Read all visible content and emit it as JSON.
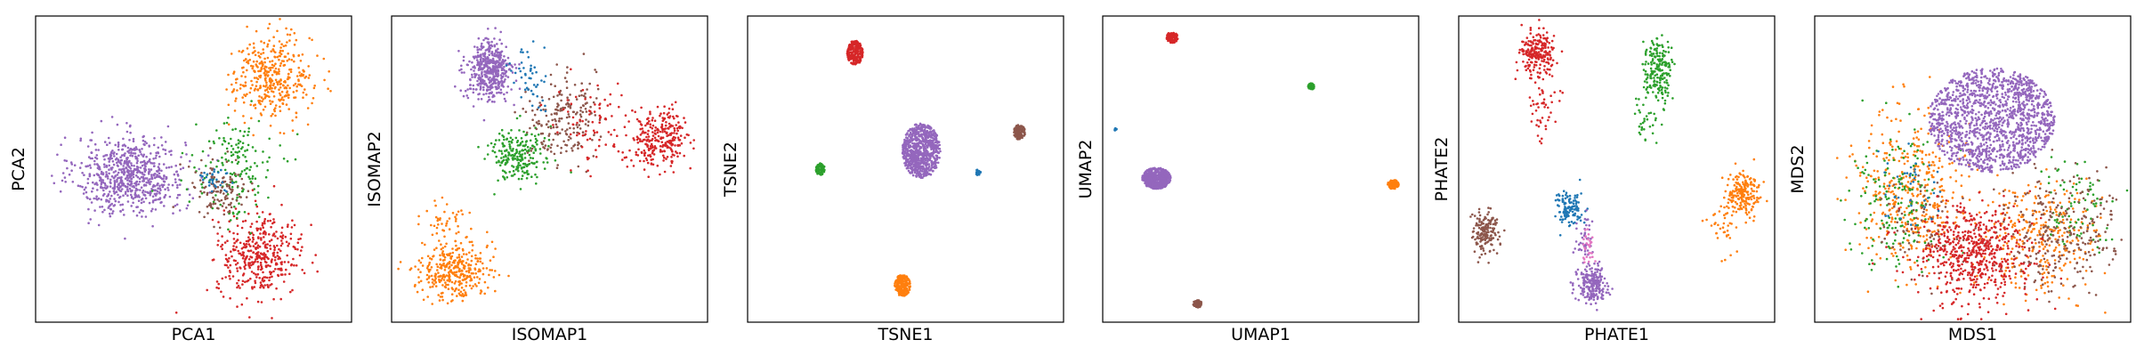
{
  "chart_data": [
    {
      "type": "scatter",
      "title": "",
      "xlabel": "PCA1",
      "ylabel": "PCA2",
      "xlim": [
        0,
        1
      ],
      "ylim": [
        0,
        1
      ],
      "grid": false,
      "series": [
        {
          "color": "#9467bd",
          "clusters": [
            {
              "x": 0.3,
              "y": 0.48,
              "sx": 0.095,
              "sy": 0.07,
              "n": 720
            }
          ]
        },
        {
          "color": "#ff7f0e",
          "clusters": [
            {
              "x": 0.75,
              "y": 0.8,
              "sx": 0.07,
              "sy": 0.075,
              "n": 380
            }
          ]
        },
        {
          "color": "#d62728",
          "clusters": [
            {
              "x": 0.71,
              "y": 0.22,
              "sx": 0.075,
              "sy": 0.075,
              "n": 400
            }
          ]
        },
        {
          "color": "#2ca02c",
          "clusters": [
            {
              "x": 0.63,
              "y": 0.5,
              "sx": 0.07,
              "sy": 0.09,
              "n": 160
            }
          ]
        },
        {
          "color": "#8c564b",
          "clusters": [
            {
              "x": 0.58,
              "y": 0.43,
              "sx": 0.05,
              "sy": 0.06,
              "n": 120
            }
          ]
        },
        {
          "color": "#1f77b4",
          "clusters": [
            {
              "x": 0.56,
              "y": 0.47,
              "sx": 0.03,
              "sy": 0.03,
              "n": 30
            }
          ]
        }
      ]
    },
    {
      "type": "scatter",
      "title": "",
      "xlabel": "ISOMAP1",
      "ylabel": "ISOMAP2",
      "xlim": [
        0,
        1
      ],
      "ylim": [
        0,
        1
      ],
      "grid": false,
      "series": [
        {
          "color": "#9467bd",
          "clusters": [
            {
              "x": 0.31,
              "y": 0.82,
              "sx": 0.04,
              "sy": 0.055,
              "n": 460
            }
          ]
        },
        {
          "color": "#ff7f0e",
          "clusters": [
            {
              "x": 0.2,
              "y": 0.17,
              "sx": 0.06,
              "sy": 0.05,
              "n": 360
            },
            {
              "x": 0.16,
              "y": 0.33,
              "sx": 0.04,
              "sy": 0.04,
              "n": 40
            }
          ]
        },
        {
          "color": "#2ca02c",
          "clusters": [
            {
              "x": 0.4,
              "y": 0.55,
              "sx": 0.05,
              "sy": 0.05,
              "n": 220
            }
          ]
        },
        {
          "color": "#8c564b",
          "clusters": [
            {
              "x": 0.54,
              "y": 0.66,
              "sx": 0.06,
              "sy": 0.08,
              "n": 200
            }
          ]
        },
        {
          "color": "#d62728",
          "clusters": [
            {
              "x": 0.85,
              "y": 0.6,
              "sx": 0.05,
              "sy": 0.05,
              "n": 280
            },
            {
              "x": 0.65,
              "y": 0.65,
              "sx": 0.07,
              "sy": 0.08,
              "n": 80
            }
          ]
        },
        {
          "color": "#1f77b4",
          "clusters": [
            {
              "x": 0.44,
              "y": 0.8,
              "sx": 0.04,
              "sy": 0.05,
              "n": 50
            }
          ]
        }
      ]
    },
    {
      "type": "scatter",
      "title": "",
      "xlabel": "TSNE1",
      "ylabel": "TSNE2",
      "xlim": [
        0,
        1
      ],
      "ylim": [
        0,
        1
      ],
      "grid": false,
      "series": [
        {
          "color": "#9467bd",
          "clusters": [
            {
              "x": 0.55,
              "y": 0.56,
              "sx": 0.06,
              "sy": 0.09,
              "n": 800,
              "uniform": true
            }
          ]
        },
        {
          "color": "#d62728",
          "clusters": [
            {
              "x": 0.34,
              "y": 0.88,
              "sx": 0.025,
              "sy": 0.04,
              "n": 260,
              "uniform": true
            }
          ]
        },
        {
          "color": "#ff7f0e",
          "clusters": [
            {
              "x": 0.49,
              "y": 0.12,
              "sx": 0.025,
              "sy": 0.035,
              "n": 220,
              "uniform": true
            }
          ]
        },
        {
          "color": "#8c564b",
          "clusters": [
            {
              "x": 0.86,
              "y": 0.62,
              "sx": 0.018,
              "sy": 0.025,
              "n": 120,
              "uniform": true
            }
          ]
        },
        {
          "color": "#2ca02c",
          "clusters": [
            {
              "x": 0.23,
              "y": 0.5,
              "sx": 0.014,
              "sy": 0.02,
              "n": 90,
              "uniform": true
            }
          ]
        },
        {
          "color": "#1f77b4",
          "clusters": [
            {
              "x": 0.73,
              "y": 0.49,
              "sx": 0.008,
              "sy": 0.01,
              "n": 20,
              "uniform": true
            }
          ]
        }
      ]
    },
    {
      "type": "scatter",
      "title": "",
      "xlabel": "UMAP1",
      "ylabel": "UMAP2",
      "xlim": [
        0,
        1
      ],
      "ylim": [
        0,
        1
      ],
      "grid": false,
      "series": [
        {
          "color": "#9467bd",
          "clusters": [
            {
              "x": 0.17,
              "y": 0.47,
              "sx": 0.045,
              "sy": 0.035,
              "n": 600,
              "uniform": true
            }
          ]
        },
        {
          "color": "#d62728",
          "clusters": [
            {
              "x": 0.22,
              "y": 0.93,
              "sx": 0.018,
              "sy": 0.018,
              "n": 120,
              "uniform": true
            }
          ]
        },
        {
          "color": "#ff7f0e",
          "clusters": [
            {
              "x": 0.92,
              "y": 0.45,
              "sx": 0.018,
              "sy": 0.015,
              "n": 110,
              "uniform": true
            }
          ]
        },
        {
          "color": "#8c564b",
          "clusters": [
            {
              "x": 0.3,
              "y": 0.06,
              "sx": 0.014,
              "sy": 0.012,
              "n": 80,
              "uniform": true
            }
          ]
        },
        {
          "color": "#2ca02c",
          "clusters": [
            {
              "x": 0.66,
              "y": 0.77,
              "sx": 0.01,
              "sy": 0.01,
              "n": 50,
              "uniform": true
            }
          ]
        },
        {
          "color": "#1f77b4",
          "clusters": [
            {
              "x": 0.04,
              "y": 0.63,
              "sx": 0.004,
              "sy": 0.004,
              "n": 10,
              "uniform": true
            }
          ]
        }
      ]
    },
    {
      "type": "scatter",
      "title": "",
      "xlabel": "PHATE1",
      "ylabel": "PHATE2",
      "xlim": [
        0,
        1
      ],
      "ylim": [
        0,
        1
      ],
      "grid": false,
      "series": [
        {
          "color": "#d62728",
          "clusters": [
            {
              "x": 0.25,
              "y": 0.88,
              "sx": 0.03,
              "sy": 0.04,
              "n": 220
            },
            {
              "x": 0.27,
              "y": 0.7,
              "sx": 0.025,
              "sy": 0.06,
              "n": 50
            }
          ]
        },
        {
          "color": "#2ca02c",
          "clusters": [
            {
              "x": 0.63,
              "y": 0.82,
              "sx": 0.025,
              "sy": 0.06,
              "n": 200
            },
            {
              "x": 0.59,
              "y": 0.66,
              "sx": 0.02,
              "sy": 0.04,
              "n": 30
            }
          ]
        },
        {
          "color": "#ff7f0e",
          "clusters": [
            {
              "x": 0.9,
              "y": 0.42,
              "sx": 0.03,
              "sy": 0.04,
              "n": 200
            },
            {
              "x": 0.84,
              "y": 0.32,
              "sx": 0.03,
              "sy": 0.06,
              "n": 40
            }
          ]
        },
        {
          "color": "#8c564b",
          "clusters": [
            {
              "x": 0.08,
              "y": 0.29,
              "sx": 0.025,
              "sy": 0.04,
              "n": 160
            }
          ]
        },
        {
          "color": "#1f77b4",
          "clusters": [
            {
              "x": 0.35,
              "y": 0.37,
              "sx": 0.025,
              "sy": 0.03,
              "n": 120
            }
          ]
        },
        {
          "color": "#9467bd",
          "clusters": [
            {
              "x": 0.42,
              "y": 0.12,
              "sx": 0.025,
              "sy": 0.035,
              "n": 220
            },
            {
              "x": 0.4,
              "y": 0.28,
              "sx": 0.02,
              "sy": 0.04,
              "n": 40
            }
          ]
        },
        {
          "color": "#e377c2",
          "clusters": [
            {
              "x": 0.41,
              "y": 0.24,
              "sx": 0.015,
              "sy": 0.04,
              "n": 30
            }
          ]
        }
      ]
    },
    {
      "type": "scatter",
      "title": "",
      "xlabel": "MDS1",
      "ylabel": "MDS2",
      "xlim": [
        0,
        1
      ],
      "ylim": [
        0,
        1
      ],
      "grid": false,
      "series": [
        {
          "color": "#ff7f0e",
          "clusters": [
            {
              "x": 0.3,
              "y": 0.42,
              "sx": 0.1,
              "sy": 0.13,
              "n": 420
            },
            {
              "x": 0.72,
              "y": 0.28,
              "sx": 0.1,
              "sy": 0.1,
              "n": 300
            }
          ]
        },
        {
          "color": "#2ca02c",
          "clusters": [
            {
              "x": 0.25,
              "y": 0.4,
              "sx": 0.09,
              "sy": 0.12,
              "n": 160
            },
            {
              "x": 0.82,
              "y": 0.38,
              "sx": 0.06,
              "sy": 0.08,
              "n": 80
            }
          ]
        },
        {
          "color": "#8c564b",
          "clusters": [
            {
              "x": 0.78,
              "y": 0.3,
              "sx": 0.1,
              "sy": 0.1,
              "n": 260
            },
            {
              "x": 0.35,
              "y": 0.3,
              "sx": 0.08,
              "sy": 0.08,
              "n": 80
            }
          ]
        },
        {
          "color": "#d62728",
          "clusters": [
            {
              "x": 0.5,
              "y": 0.22,
              "sx": 0.1,
              "sy": 0.09,
              "n": 600
            }
          ]
        },
        {
          "color": "#9467bd",
          "clusters": [
            {
              "x": 0.56,
              "y": 0.66,
              "sx": 0.2,
              "sy": 0.17,
              "n": 1400,
              "uniform": true
            }
          ]
        },
        {
          "color": "#1f77b4",
          "clusters": [
            {
              "x": 0.3,
              "y": 0.45,
              "sx": 0.06,
              "sy": 0.08,
              "n": 40
            }
          ]
        }
      ]
    }
  ]
}
